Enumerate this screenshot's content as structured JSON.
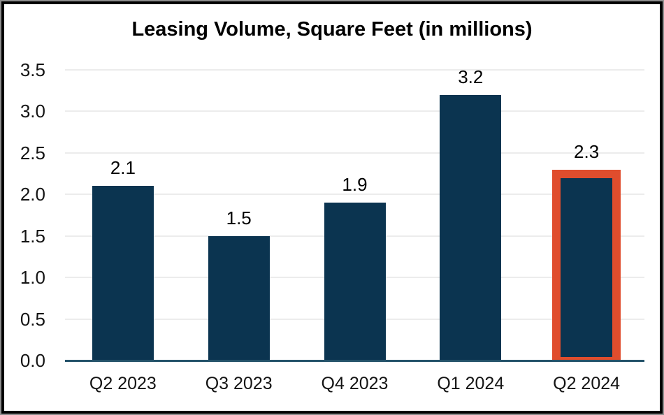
{
  "chart_data": {
    "type": "bar",
    "title": "Leasing Volume, Square Feet (in millions)",
    "categories": [
      "Q2 2023",
      "Q3 2023",
      "Q4 2023",
      "Q1 2024",
      "Q2 2024"
    ],
    "values": [
      2.1,
      1.5,
      1.9,
      3.2,
      2.3
    ],
    "data_labels": [
      "2.1",
      "1.5",
      "1.9",
      "3.2",
      "2.3"
    ],
    "highlighted_index": 4,
    "highlighted_category": "Q2 2024",
    "xlabel": "",
    "ylabel": "",
    "ylim": [
      0,
      3.5
    ],
    "ytick_step": 0.5,
    "ytick_labels": [
      "0.0",
      "0.5",
      "1.0",
      "1.5",
      "2.0",
      "2.5",
      "3.0",
      "3.5"
    ],
    "grid": "horizontal",
    "legend": "none",
    "colors": {
      "bar": "#0B3450",
      "highlight_border": "#E04D2D",
      "axis_line": "#24536A",
      "gridline": "#ECECEC",
      "text": "#000000",
      "background": "#FFFFFF",
      "frame_border": "#000000"
    }
  }
}
